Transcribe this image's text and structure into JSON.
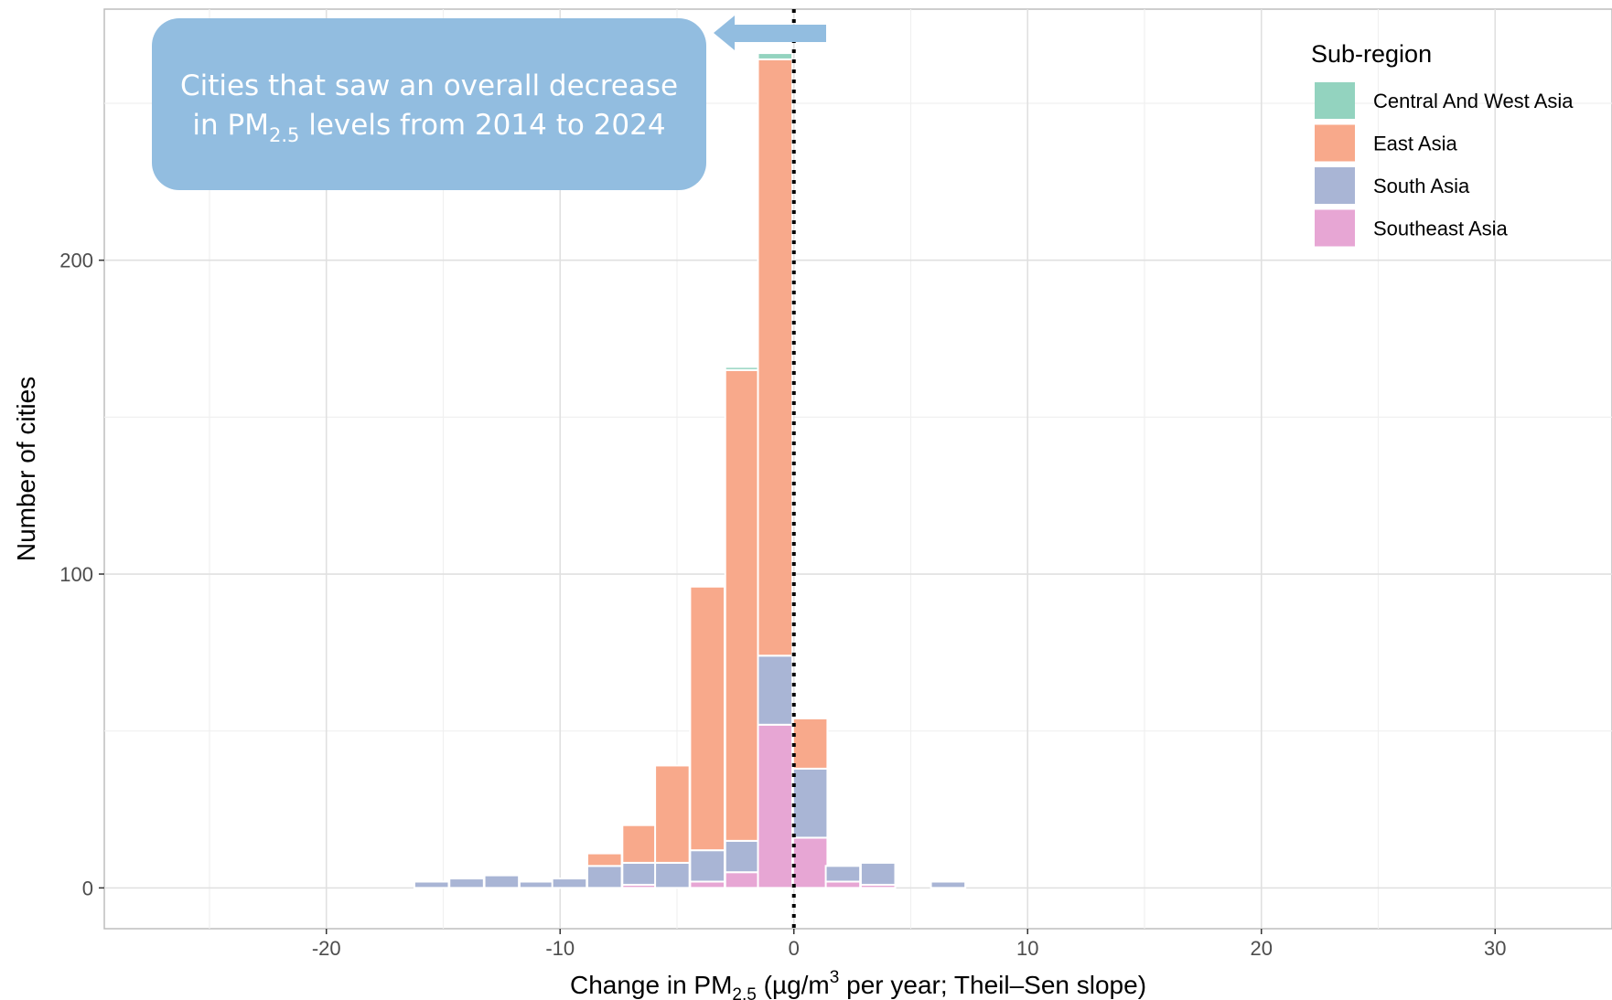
{
  "chart_data": {
    "type": "bar",
    "stacked": true,
    "xlabel_parts": [
      "Change in PM",
      "2.5",
      " (µg/m",
      "3",
      " per year; Theil–Sen slope)"
    ],
    "ylabel": "Number of cities",
    "xlim": [
      -29.5,
      35
    ],
    "ylim": [
      -13,
      280
    ],
    "x_ticks": [
      -20,
      -10,
      0,
      10,
      20,
      30
    ],
    "x_tick_labels": [
      "-20",
      "-10",
      "0",
      "10",
      "20",
      "30"
    ],
    "y_ticks": [
      0,
      100,
      200
    ],
    "y_tick_labels": [
      "0",
      "100",
      "200"
    ],
    "grid": true,
    "bin_width": 1.471,
    "bin_centers": [
      -26.5,
      -15.5,
      -14.0,
      -12.5,
      -11.0,
      -9.6,
      -8.1,
      -6.6,
      -5.2,
      -3.7,
      -2.2,
      -0.8,
      0.7,
      2.1,
      3.6,
      6.6
    ],
    "series": [
      {
        "name": "Southeast Asia",
        "color": "#e7a6d4",
        "values": [
          0,
          0,
          0,
          0,
          0,
          0,
          0,
          1,
          0,
          2,
          5,
          52,
          16,
          2,
          1,
          0
        ]
      },
      {
        "name": "South Asia",
        "color": "#a9b5d5",
        "values": [
          0,
          2,
          3,
          4,
          2,
          3,
          7,
          7,
          8,
          10,
          10,
          22,
          22,
          5,
          7,
          2
        ]
      },
      {
        "name": "East Asia",
        "color": "#f8a98b",
        "values": [
          0,
          0,
          0,
          0,
          0,
          0,
          4,
          12,
          31,
          84,
          150,
          190,
          16,
          0,
          0,
          0
        ]
      },
      {
        "name": "Central And West Asia",
        "color": "#93d3bf",
        "values": [
          0,
          0,
          0,
          0,
          0,
          0,
          0,
          0,
          0,
          0,
          1,
          2,
          0,
          0,
          0,
          0
        ]
      }
    ],
    "reference_line": {
      "x": 0,
      "style": "dotted"
    },
    "legend": {
      "title": "Sub-region",
      "placement": "top-right",
      "entries": [
        {
          "label": "Central And West Asia",
          "color": "#93d3bf"
        },
        {
          "label": "East Asia",
          "color": "#f8a98b"
        },
        {
          "label": "South Asia",
          "color": "#a9b5d5"
        },
        {
          "label": "Southeast Asia",
          "color": "#e7a6d4"
        }
      ]
    },
    "annotation": {
      "line1": "Cities that saw an overall decrease",
      "line2_parts": [
        "in PM",
        "2.5",
        " levels from 2014 to 2024"
      ],
      "box_color": "#92bde0",
      "arrow_direction": "left"
    }
  }
}
